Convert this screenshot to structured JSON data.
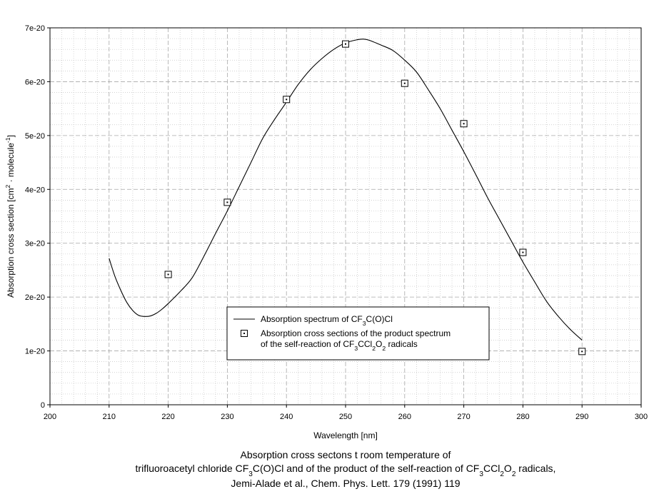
{
  "chart_data": {
    "type": "line",
    "xlabel": "Wavelength [nm]",
    "ylabel": {
      "pre": "Absorption cross section [cm",
      "sup1": "2",
      "mid": " · molecule",
      "sup2": "-1",
      "post": "]"
    },
    "xlim": [
      200,
      300
    ],
    "ylim": [
      0,
      7e-20
    ],
    "x_ticks": [
      "200",
      "210",
      "220",
      "230",
      "240",
      "250",
      "260",
      "270",
      "280",
      "290",
      "300"
    ],
    "y_ticks": [
      "0",
      "1e-20",
      "2e-20",
      "3e-20",
      "4e-20",
      "5e-20",
      "6e-20",
      "7e-20"
    ],
    "grid": true,
    "legend_position": "lower-center",
    "series": [
      {
        "kind": "line",
        "legend_parts": [
          [
            "Absorption spectrum of CF",
            "n"
          ],
          [
            "3",
            "sub"
          ],
          [
            "C(O)Cl",
            "n"
          ]
        ],
        "x": [
          210,
          211,
          212,
          213,
          214,
          215,
          216,
          217,
          218,
          219,
          220,
          222,
          224,
          226,
          228,
          230,
          232,
          234,
          236,
          238,
          240,
          242,
          244,
          246,
          248,
          250,
          252,
          253,
          254,
          256,
          258,
          260,
          262,
          264,
          266,
          268,
          270,
          272,
          274,
          276,
          278,
          280,
          282,
          284,
          286,
          288,
          290
        ],
        "y": [
          2.72e-20,
          2.38e-20,
          2.12e-20,
          1.9e-20,
          1.75e-20,
          1.66e-20,
          1.64e-20,
          1.65e-20,
          1.7e-20,
          1.78e-20,
          1.88e-20,
          2.1e-20,
          2.35e-20,
          2.75e-20,
          3.18e-20,
          3.6e-20,
          4.05e-20,
          4.5e-20,
          4.95e-20,
          5.3e-20,
          5.62e-20,
          5.95e-20,
          6.22e-20,
          6.43e-20,
          6.6e-20,
          6.72e-20,
          6.78e-20,
          6.79e-20,
          6.77e-20,
          6.68e-20,
          6.58e-20,
          6.4e-20,
          6.18e-20,
          5.85e-20,
          5.5e-20,
          5.1e-20,
          4.7e-20,
          4.28e-20,
          3.85e-20,
          3.45e-20,
          3.05e-20,
          2.65e-20,
          2.28e-20,
          1.92e-20,
          1.64e-20,
          1.4e-20,
          1.2e-20
        ]
      },
      {
        "kind": "marker",
        "legend_lines": [
          [
            [
              "Absorption cross sections of the product spectrum",
              "n"
            ]
          ],
          [
            [
              "of the self-reaction of CF",
              "n"
            ],
            [
              "3",
              "sub"
            ],
            [
              "CCl",
              "n"
            ],
            [
              "2",
              "sub"
            ],
            [
              "O",
              "n"
            ],
            [
              "2",
              "sub"
            ],
            [
              " radicals",
              "n"
            ]
          ]
        ],
        "x": [
          220,
          230,
          240,
          250,
          260,
          270,
          280,
          290
        ],
        "y": [
          2.42e-20,
          3.76e-20,
          5.67e-20,
          6.7e-20,
          5.97e-20,
          5.22e-20,
          2.83e-20,
          9.9e-21
        ]
      }
    ],
    "caption": [
      [
        [
          "Absorption cross sectons t room temperature of",
          "n"
        ]
      ],
      [
        [
          "trifluoroacetyl chloride CF",
          "n"
        ],
        [
          "3",
          "sub"
        ],
        [
          "C(O)Cl and of the product of the self-reaction of CF",
          "n"
        ],
        [
          "3",
          "sub"
        ],
        [
          "CCl",
          "n"
        ],
        [
          "2",
          "sub"
        ],
        [
          "O",
          "n"
        ],
        [
          "2",
          "sub"
        ],
        [
          " radicals,",
          "n"
        ]
      ],
      [
        [
          "Jemi-Alade et al., Chem. Phys. Lett. 179 (1991) 119",
          "n"
        ]
      ]
    ]
  }
}
